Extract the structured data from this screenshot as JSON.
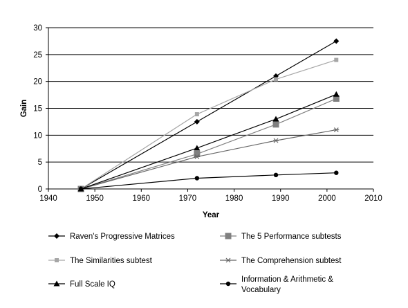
{
  "chart_data": {
    "type": "line",
    "title": "",
    "xlabel": "Year",
    "ylabel": "Gain",
    "xlim": [
      1940,
      2010
    ],
    "ylim": [
      0,
      30
    ],
    "xticks": [
      1940,
      1950,
      1960,
      1970,
      1980,
      1990,
      2000,
      2010
    ],
    "yticks": [
      0,
      5,
      10,
      15,
      20,
      25,
      30
    ],
    "grid": "horizontal",
    "legend_position": "bottom",
    "series": [
      {
        "name": "Raven's Progressive Matrices",
        "marker": "diamond",
        "color": "#000000",
        "points": [
          [
            1947,
            0
          ],
          [
            1972,
            12.5
          ],
          [
            1989,
            21.0
          ],
          [
            2002,
            27.5
          ]
        ]
      },
      {
        "name": "The 5 Performance subtests",
        "marker": "square",
        "color": "#808080",
        "points": [
          [
            1947,
            0
          ],
          [
            1972,
            6.5
          ],
          [
            1989,
            12.0
          ],
          [
            2002,
            16.8
          ]
        ]
      },
      {
        "name": "The Similarities subtest",
        "marker": "small-square",
        "color": "#a6a6a6",
        "points": [
          [
            1947,
            0
          ],
          [
            1972,
            13.9
          ],
          [
            1989,
            20.4
          ],
          [
            2002,
            24.0
          ]
        ]
      },
      {
        "name": "The Comprehension subtest",
        "marker": "asterisk",
        "color": "#666666",
        "points": [
          [
            1947,
            0
          ],
          [
            1972,
            6.0
          ],
          [
            1989,
            9.0
          ],
          [
            2002,
            11.0
          ]
        ]
      },
      {
        "name": "Full Scale IQ",
        "marker": "triangle",
        "color": "#000000",
        "points": [
          [
            1947,
            0
          ],
          [
            1972,
            7.6
          ],
          [
            1989,
            13.0
          ],
          [
            2002,
            17.6
          ]
        ]
      },
      {
        "name": "Information & Arithmetic & Vocabulary",
        "marker": "circle",
        "color": "#000000",
        "points": [
          [
            1947,
            0
          ],
          [
            1972,
            2.0
          ],
          [
            1989,
            2.6
          ],
          [
            2002,
            3.0
          ]
        ]
      }
    ],
    "legend_lines": [
      [
        "Raven's Progressive Matrices"
      ],
      [
        "The 5 Performance subtests"
      ],
      [
        "The Similarities subtest"
      ],
      [
        "The Comprehension subtest"
      ],
      [
        "Full Scale IQ"
      ],
      [
        "Information & Arithmetic &",
        "Vocabulary"
      ]
    ]
  }
}
